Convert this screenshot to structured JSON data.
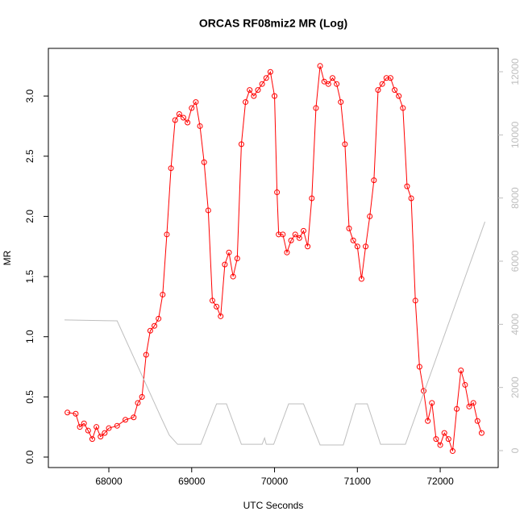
{
  "chart_data": {
    "type": "line",
    "title": "ORCAS RF08miz2 MR (Log)",
    "xlabel": "UTC Seconds",
    "ylabel": "MR",
    "xlim": [
      67270,
      72700
    ],
    "ylim": [
      -0.087,
      3.396
    ],
    "y2lim": [
      -536,
      12740
    ],
    "xticks": [
      68000,
      69000,
      70000,
      71000,
      72000
    ],
    "yticks": [
      {
        "value": 0,
        "label": "0.0"
      },
      0.5,
      {
        "value": 1,
        "label": "1.0"
      },
      1.5,
      {
        "value": 2,
        "label": "2.0"
      },
      2.5,
      {
        "value": 3,
        "label": "3.0"
      }
    ],
    "y2ticks": [
      0,
      2000,
      4000,
      6000,
      8000,
      10000,
      12000
    ],
    "y2_axis_color": "#bebebe",
    "series": [
      {
        "color": "#ff0000",
        "marker": "circle",
        "x": [
          67500,
          67600,
          67650,
          67700,
          67750,
          67800,
          67850,
          67900,
          67950,
          68000,
          68100,
          68200,
          68300,
          68350,
          68400,
          68450,
          68500,
          68550,
          68600,
          68650,
          68700,
          68750,
          68800,
          68850,
          68900,
          68950,
          69000,
          69050,
          69100,
          69150,
          69200,
          69250,
          69300,
          69350,
          69400,
          69450,
          69500,
          69550,
          69600,
          69650,
          69700,
          69750,
          69800,
          69850,
          69900,
          69950,
          70000,
          70030,
          70050,
          70100,
          70150,
          70200,
          70250,
          70300,
          70350,
          70400,
          70450,
          70500,
          70550,
          70600,
          70650,
          70700,
          70750,
          70800,
          70850,
          70900,
          70950,
          71000,
          71050,
          71100,
          71150,
          71200,
          71250,
          71300,
          71350,
          71400,
          71450,
          71500,
          71550,
          71600,
          71650,
          71700,
          71750,
          71800,
          71850,
          71900,
          71950,
          72000,
          72050,
          72100,
          72150,
          72200,
          72250,
          72300,
          72350,
          72400,
          72450,
          72500
        ],
        "values": [
          0.37,
          0.36,
          0.25,
          0.28,
          0.22,
          0.15,
          0.25,
          0.17,
          0.2,
          0.24,
          0.26,
          0.31,
          0.33,
          0.45,
          0.5,
          0.85,
          1.05,
          1.09,
          1.15,
          1.35,
          1.85,
          2.4,
          2.8,
          2.85,
          2.82,
          2.78,
          2.9,
          2.95,
          2.75,
          2.45,
          2.05,
          1.3,
          1.25,
          1.17,
          1.6,
          1.7,
          1.5,
          1.65,
          2.6,
          2.95,
          3.05,
          3.0,
          3.05,
          3.1,
          3.15,
          3.2,
          3.0,
          2.2,
          1.85,
          1.85,
          1.7,
          1.8,
          1.85,
          1.82,
          1.88,
          1.75,
          2.15,
          2.9,
          3.25,
          3.12,
          3.1,
          3.15,
          3.1,
          2.95,
          2.6,
          1.9,
          1.8,
          1.75,
          1.48,
          1.75,
          2.0,
          2.3,
          3.05,
          3.1,
          3.15,
          3.15,
          3.05,
          3.0,
          2.9,
          2.25,
          2.15,
          1.3,
          0.75,
          0.55,
          0.3,
          0.45,
          0.15,
          0.1,
          0.2,
          0.15,
          0.05,
          0.4,
          0.72,
          0.6,
          0.42,
          0.45,
          0.3,
          0.2
        ]
      },
      {
        "color": "#bebebe",
        "axis": "y2",
        "x": [
          67465,
          68100,
          68630,
          68730,
          68830,
          69110,
          69300,
          69420,
          69600,
          69850,
          69880,
          69900,
          69990,
          70170,
          70350,
          70550,
          70830,
          70980,
          71120,
          71280,
          71580,
          72540
        ],
        "values": [
          4140,
          4110,
          1050,
          490,
          200,
          200,
          1480,
          1480,
          200,
          200,
          400,
          200,
          200,
          1480,
          1480,
          180,
          180,
          1480,
          1480,
          200,
          200,
          7250
        ]
      }
    ]
  }
}
